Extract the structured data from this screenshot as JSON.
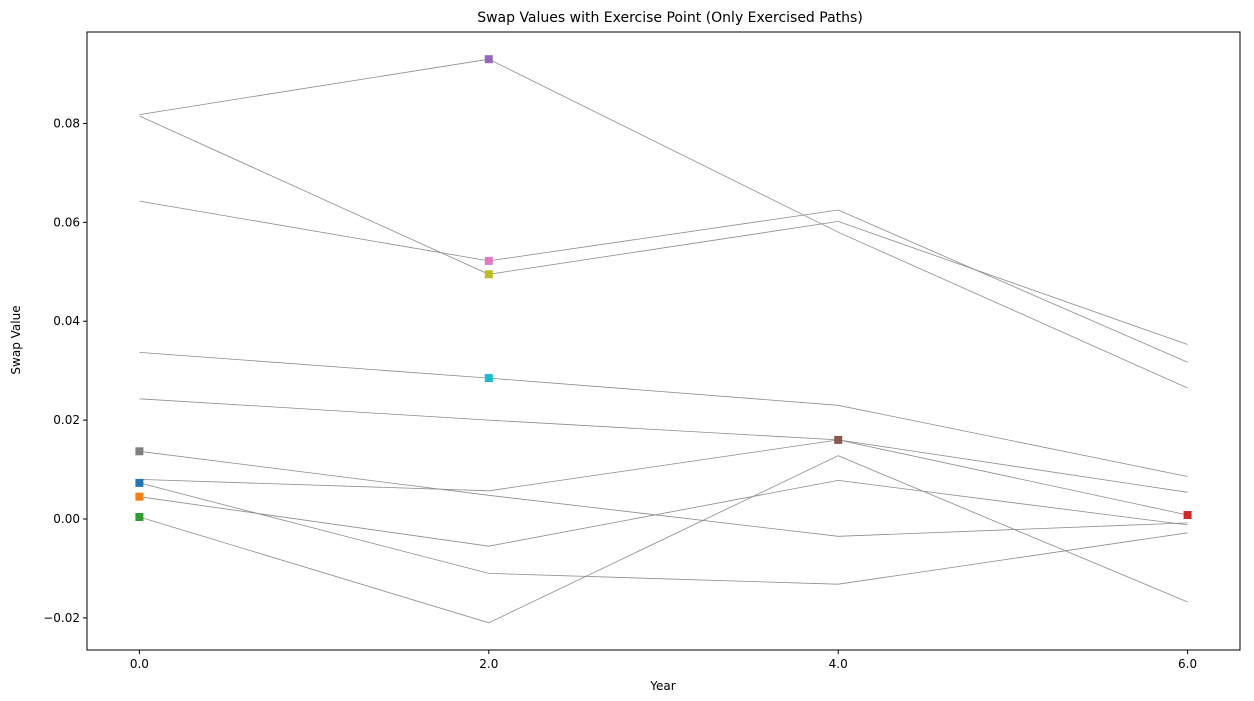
{
  "chart_data": {
    "type": "line",
    "title": "Swap Values with Exercise Point (Only Exercised Paths)",
    "xlabel": "Year",
    "ylabel": "Swap Value",
    "x": [
      0,
      2,
      4,
      6
    ],
    "xlim": [
      -0.3,
      6.3
    ],
    "ylim": [
      -0.0265,
      0.0985
    ],
    "xticks": [
      0,
      2,
      4,
      6
    ],
    "xtick_labels": [
      "0.0",
      "2.0",
      "4.0",
      "6.0"
    ],
    "yticks": [
      -0.02,
      0.0,
      0.02,
      0.04,
      0.06,
      0.08
    ],
    "ytick_labels": [
      "−0.02",
      "0.00",
      "0.02",
      "0.04",
      "0.06",
      "0.08"
    ],
    "grid": false,
    "line_color": "#8c8c8c",
    "series": [
      {
        "values": [
          0.0073,
          -0.011,
          -0.0132,
          -0.0028
        ],
        "exercise_index": 0,
        "marker_color": "#1f77b4"
      },
      {
        "values": [
          0.0045,
          -0.0055,
          0.0078,
          -0.0012
        ],
        "exercise_index": 0,
        "marker_color": "#ff7f0e"
      },
      {
        "values": [
          0.0004,
          -0.021,
          0.0128,
          -0.0168
        ],
        "exercise_index": 0,
        "marker_color": "#2ca02c"
      },
      {
        "values": [
          0.0243,
          0.02,
          0.016,
          0.0008
        ],
        "exercise_index": 3,
        "marker_color": "#d62728"
      },
      {
        "values": [
          0.0818,
          0.093,
          0.058,
          0.0265
        ],
        "exercise_index": 1,
        "marker_color": "#9467bd"
      },
      {
        "values": [
          0.008,
          0.0057,
          0.016,
          0.0054
        ],
        "exercise_index": 2,
        "marker_color": "#8c564b"
      },
      {
        "values": [
          0.0643,
          0.0522,
          0.0625,
          0.0317
        ],
        "exercise_index": 1,
        "marker_color": "#e377c2"
      },
      {
        "values": [
          0.0137,
          0.0048,
          -0.0035,
          -0.0008
        ],
        "exercise_index": 0,
        "marker_color": "#7f7f7f"
      },
      {
        "values": [
          0.0815,
          0.0495,
          0.0602,
          0.0353
        ],
        "exercise_index": 1,
        "marker_color": "#bcbd22"
      },
      {
        "values": [
          0.0337,
          0.0285,
          0.023,
          0.0086
        ],
        "exercise_index": 1,
        "marker_color": "#17becf"
      }
    ]
  }
}
